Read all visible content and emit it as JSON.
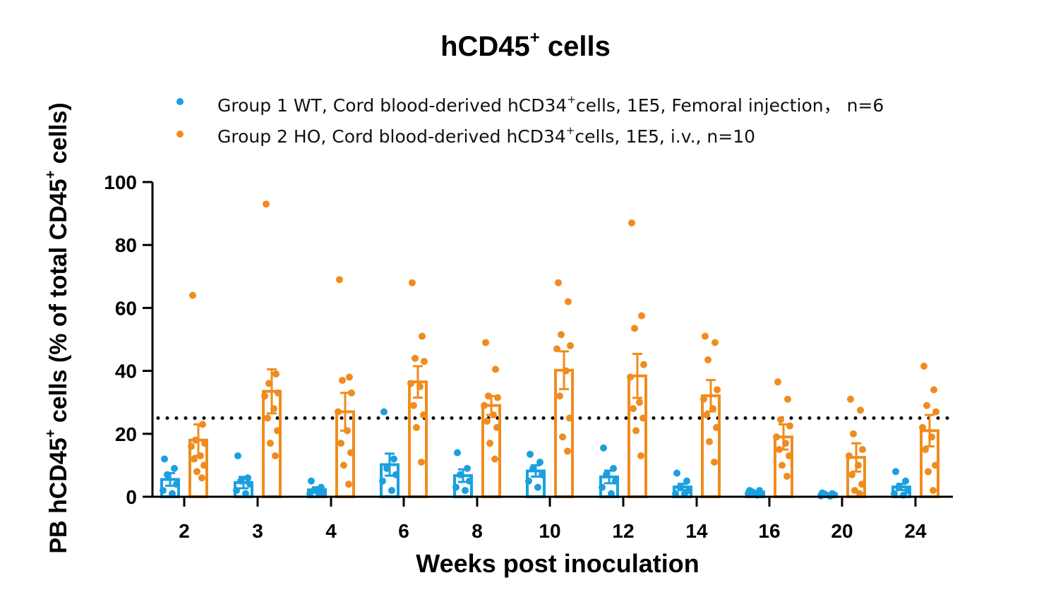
{
  "chart_data": {
    "type": "bar",
    "title_main": "hCD45",
    "title_sup": "+",
    "title_tail": " cells",
    "xlabel": "Weeks post inoculation",
    "ylabel_a": "PB hCD45",
    "ylabel_sup1": "+",
    "ylabel_b": " cells  (% of total CD45",
    "ylabel_sup2": "+",
    "ylabel_c": " cells)",
    "ylim": [
      0,
      100
    ],
    "yticks": [
      "0",
      "20",
      "40",
      "60",
      "80",
      "100"
    ],
    "categories": [
      "2",
      "3",
      "4",
      "6",
      "8",
      "10",
      "12",
      "14",
      "16",
      "20",
      "24"
    ],
    "threshold": 25,
    "series": [
      {
        "name": "Group 1 WT",
        "legend_a": "Group 1 WT, Cord blood-derived hCD34",
        "legend_sup": "+",
        "legend_b": "cells, 1E5, Femoral injection， n=6",
        "color": "#1aa0e0",
        "values": [
          5.5,
          4.5,
          2.2,
          10.2,
          6.7,
          8.2,
          6.3,
          3.1,
          1.5,
          0.8,
          3.1
        ],
        "errors": [
          2.0,
          1.8,
          0.8,
          3.5,
          2.0,
          1.8,
          2.0,
          1.0,
          0.3,
          0.2,
          1.0
        ],
        "points": [
          [
            12,
            9,
            7,
            4,
            2,
            1
          ],
          [
            13,
            6,
            5,
            4,
            2,
            1
          ],
          [
            5,
            3,
            2,
            1,
            1,
            1
          ],
          [
            27,
            12,
            9,
            7,
            5,
            2
          ],
          [
            14,
            9,
            7,
            5,
            3,
            2
          ],
          [
            13.5,
            11,
            9,
            7,
            5,
            3
          ],
          [
            15.5,
            9,
            7,
            5,
            3,
            1
          ],
          [
            7.5,
            5,
            3,
            2,
            1,
            1
          ],
          [
            2,
            2,
            1.5,
            1,
            1,
            0.5
          ],
          [
            1.2,
            1,
            0.8,
            0.6,
            0.3,
            0.2
          ],
          [
            8,
            5,
            3,
            2,
            1,
            0.5
          ]
        ]
      },
      {
        "name": "Group 2 HO",
        "legend_a": "Group 2 HO, Cord blood-derived hCD34",
        "legend_sup": "+",
        "legend_b": "cells, 1E5, i.v., n=10",
        "color": "#f08c1e",
        "values": [
          18,
          33.5,
          27,
          36.5,
          29,
          40.2,
          38.4,
          32.1,
          19,
          12.5,
          21
        ],
        "errors": [
          5,
          7,
          6,
          5,
          3,
          6,
          7,
          5,
          4,
          4.5,
          5
        ],
        "points": [
          [
            64,
            23,
            18,
            17,
            16,
            13,
            12,
            10,
            8,
            6
          ],
          [
            93,
            39,
            36,
            33,
            32,
            28,
            25,
            21,
            17,
            13
          ],
          [
            69,
            38,
            37,
            33,
            27,
            21,
            17,
            14,
            10,
            4
          ],
          [
            68,
            51,
            44,
            43,
            36,
            35,
            29,
            26,
            22,
            11
          ],
          [
            49,
            40.5,
            32,
            31.5,
            29,
            26,
            24,
            22,
            17,
            12
          ],
          [
            68,
            62,
            51.5,
            48,
            47,
            40,
            32,
            25,
            19,
            14.5
          ],
          [
            87,
            57.5,
            53.5,
            42,
            38,
            30,
            28,
            25,
            21,
            13
          ],
          [
            51,
            49,
            43.5,
            34,
            31,
            28,
            26,
            22,
            17.5,
            11
          ],
          [
            36.5,
            31,
            24.5,
            22.5,
            19,
            17,
            15,
            13,
            10,
            6.5
          ],
          [
            31,
            27.5,
            20,
            15,
            13,
            10,
            7,
            4,
            2,
            1
          ],
          [
            41.5,
            34,
            29,
            27,
            22,
            19,
            15,
            10,
            8,
            2
          ]
        ]
      }
    ]
  }
}
